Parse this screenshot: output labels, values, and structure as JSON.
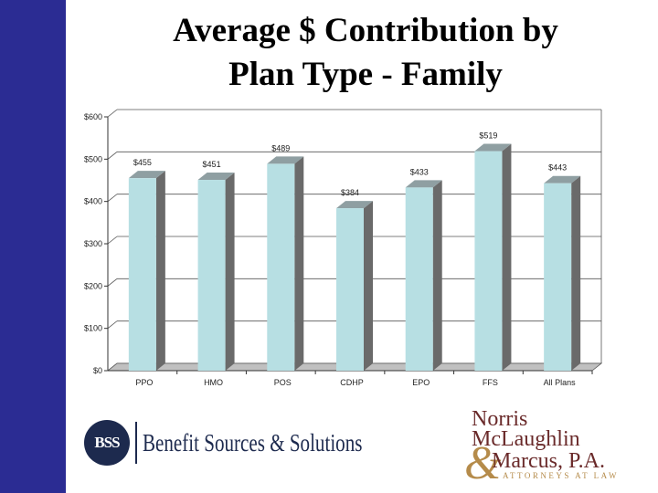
{
  "slide": {
    "title_line1": "Average $ Contribution by",
    "title_line2": "Plan Type - Family"
  },
  "colors": {
    "sidebar": "#2b2c93",
    "bar_front": "#b7dfe3",
    "bar_side": "#6a6a6a",
    "bar_top": "#8f9fa2",
    "wall": "#ffffff",
    "floor": "#c0c0c0",
    "logo_navy": "#1d2a4e",
    "logo_maroon": "#6a2a2a",
    "logo_gold": "#b58b4a"
  },
  "chart_data": {
    "type": "bar",
    "title": "",
    "xlabel": "",
    "ylabel": "",
    "categories": [
      "PPO",
      "HMO",
      "POS",
      "CDHP",
      "EPO",
      "FFS",
      "All Plans"
    ],
    "values": [
      455,
      451,
      489,
      384,
      433,
      519,
      443
    ],
    "data_labels": [
      "$455",
      "$451",
      "$489",
      "$384",
      "$433",
      "$519",
      "$443"
    ],
    "ylim": [
      0,
      600
    ],
    "yticks": [
      0,
      100,
      200,
      300,
      400,
      500,
      600
    ],
    "ytick_labels": [
      "$0",
      "$100",
      "$200",
      "$300",
      "$400",
      "$500",
      "$600"
    ],
    "grid": true,
    "legend": "none",
    "style": "3d"
  },
  "logos": {
    "bss_badge": "BSS",
    "bss_name": "Benefit Sources & Solutions",
    "nm_line1": "Norris",
    "nm_line2": "McLaughlin",
    "nm_amp": "&",
    "nm_line3": "Marcus, P.A.",
    "nm_line4": "ATTORNEYS AT LAW"
  }
}
